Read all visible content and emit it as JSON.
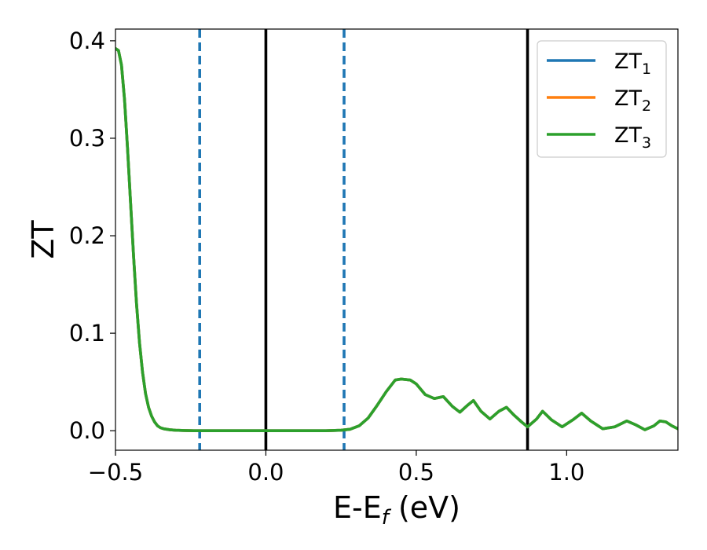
{
  "chart_data": {
    "type": "line",
    "xlabel": "E-E",
    "xlabel_sub": "f",
    "xlabel_unit": " (eV)",
    "ylabel": "ZT",
    "xlim": [
      -0.5,
      1.37
    ],
    "ylim": [
      -0.02,
      0.412
    ],
    "xticks": [
      -0.5,
      0.0,
      0.5,
      1.0
    ],
    "xtick_labels": [
      "−0.5",
      "0.0",
      "0.5",
      "1.0"
    ],
    "yticks": [
      0.0,
      0.1,
      0.2,
      0.3,
      0.4
    ],
    "ytick_labels": [
      "0.0",
      "0.1",
      "0.2",
      "0.3",
      "0.4"
    ],
    "grid": false,
    "legend_position": "top-right",
    "legend_entries": [
      {
        "base": "ZT",
        "sub": "1"
      },
      {
        "base": "ZT",
        "sub": "2"
      },
      {
        "base": "ZT",
        "sub": "3"
      }
    ],
    "vlines": [
      {
        "x": -0.22,
        "style": "dashed",
        "color": "#1f77b4"
      },
      {
        "x": 0.0,
        "style": "solid",
        "color": "#000000"
      },
      {
        "x": 0.26,
        "style": "dashed",
        "color": "#1f77b4"
      },
      {
        "x": 0.87,
        "style": "solid",
        "color": "#000000"
      }
    ],
    "series": [
      {
        "name": "ZT1",
        "color": "#1f77b4",
        "x": [
          -0.5,
          -0.49,
          -0.48,
          -0.47,
          -0.46,
          -0.45,
          -0.44,
          -0.43,
          -0.42,
          -0.41,
          -0.4,
          -0.39,
          -0.38,
          -0.37,
          -0.36,
          -0.35,
          -0.34,
          -0.32,
          -0.3,
          -0.27,
          -0.24,
          -0.2,
          -0.1,
          0.0,
          0.1,
          0.2,
          0.25,
          0.28,
          0.31,
          0.34,
          0.37,
          0.4,
          0.43,
          0.45,
          0.48,
          0.5,
          0.53,
          0.56,
          0.59,
          0.62,
          0.645,
          0.67,
          0.69,
          0.715,
          0.745,
          0.775,
          0.8,
          0.825,
          0.85,
          0.87,
          0.9,
          0.92,
          0.95,
          0.985,
          1.02,
          1.05,
          1.08,
          1.12,
          1.16,
          1.2,
          1.23,
          1.26,
          1.29,
          1.31,
          1.33,
          1.35,
          1.37
        ],
        "y": [
          0.392,
          0.39,
          0.375,
          0.34,
          0.29,
          0.235,
          0.18,
          0.13,
          0.09,
          0.06,
          0.038,
          0.024,
          0.015,
          0.009,
          0.005,
          0.003,
          0.002,
          0.001,
          0.0005,
          0.0002,
          0.0,
          0.0,
          0.0,
          0.0,
          0.0,
          0.0,
          0.0005,
          0.0015,
          0.005,
          0.013,
          0.026,
          0.04,
          0.052,
          0.053,
          0.052,
          0.048,
          0.037,
          0.033,
          0.035,
          0.025,
          0.019,
          0.026,
          0.031,
          0.02,
          0.012,
          0.02,
          0.024,
          0.016,
          0.009,
          0.004,
          0.012,
          0.02,
          0.011,
          0.004,
          0.011,
          0.018,
          0.01,
          0.002,
          0.004,
          0.01,
          0.006,
          0.001,
          0.005,
          0.01,
          0.009,
          0.005,
          0.002
        ]
      },
      {
        "name": "ZT2",
        "color": "#ff7f0e",
        "x": [
          -0.5,
          -0.49,
          -0.48,
          -0.47,
          -0.46,
          -0.45,
          -0.44,
          -0.43,
          -0.42,
          -0.41,
          -0.4,
          -0.39,
          -0.38,
          -0.37,
          -0.36,
          -0.35,
          -0.34,
          -0.32,
          -0.3,
          -0.27,
          -0.24,
          -0.2,
          -0.1,
          0.0,
          0.1,
          0.2,
          0.25,
          0.28,
          0.31,
          0.34,
          0.37,
          0.4,
          0.43,
          0.45,
          0.48,
          0.5,
          0.53,
          0.56,
          0.59,
          0.62,
          0.645,
          0.67,
          0.69,
          0.715,
          0.745,
          0.775,
          0.8,
          0.825,
          0.85,
          0.87,
          0.9,
          0.92,
          0.95,
          0.985,
          1.02,
          1.05,
          1.08,
          1.12,
          1.16,
          1.2,
          1.23,
          1.26,
          1.29,
          1.31,
          1.33,
          1.35,
          1.37
        ],
        "y": [
          0.392,
          0.39,
          0.375,
          0.34,
          0.29,
          0.235,
          0.18,
          0.13,
          0.09,
          0.06,
          0.038,
          0.024,
          0.015,
          0.009,
          0.005,
          0.003,
          0.002,
          0.001,
          0.0005,
          0.0002,
          0.0,
          0.0,
          0.0,
          0.0,
          0.0,
          0.0,
          0.0005,
          0.0015,
          0.005,
          0.013,
          0.026,
          0.04,
          0.052,
          0.053,
          0.052,
          0.048,
          0.037,
          0.033,
          0.035,
          0.025,
          0.019,
          0.026,
          0.031,
          0.02,
          0.012,
          0.02,
          0.024,
          0.016,
          0.009,
          0.004,
          0.012,
          0.02,
          0.011,
          0.004,
          0.011,
          0.018,
          0.01,
          0.002,
          0.004,
          0.01,
          0.006,
          0.001,
          0.005,
          0.01,
          0.009,
          0.005,
          0.002
        ]
      },
      {
        "name": "ZT3",
        "color": "#2ca02c",
        "x": [
          -0.5,
          -0.49,
          -0.48,
          -0.47,
          -0.46,
          -0.45,
          -0.44,
          -0.43,
          -0.42,
          -0.41,
          -0.4,
          -0.39,
          -0.38,
          -0.37,
          -0.36,
          -0.35,
          -0.34,
          -0.32,
          -0.3,
          -0.27,
          -0.24,
          -0.2,
          -0.1,
          0.0,
          0.1,
          0.2,
          0.25,
          0.28,
          0.31,
          0.34,
          0.37,
          0.4,
          0.43,
          0.45,
          0.48,
          0.5,
          0.53,
          0.56,
          0.59,
          0.62,
          0.645,
          0.67,
          0.69,
          0.715,
          0.745,
          0.775,
          0.8,
          0.825,
          0.85,
          0.87,
          0.9,
          0.92,
          0.95,
          0.985,
          1.02,
          1.05,
          1.08,
          1.12,
          1.16,
          1.2,
          1.23,
          1.26,
          1.29,
          1.31,
          1.33,
          1.35,
          1.37
        ],
        "y": [
          0.392,
          0.39,
          0.375,
          0.34,
          0.29,
          0.235,
          0.18,
          0.13,
          0.09,
          0.06,
          0.038,
          0.024,
          0.015,
          0.009,
          0.005,
          0.003,
          0.002,
          0.001,
          0.0005,
          0.0002,
          0.0,
          0.0,
          0.0,
          0.0,
          0.0,
          0.0,
          0.0005,
          0.0015,
          0.005,
          0.013,
          0.026,
          0.04,
          0.052,
          0.053,
          0.052,
          0.048,
          0.037,
          0.033,
          0.035,
          0.025,
          0.019,
          0.026,
          0.031,
          0.02,
          0.012,
          0.02,
          0.024,
          0.016,
          0.009,
          0.004,
          0.012,
          0.02,
          0.011,
          0.004,
          0.011,
          0.018,
          0.01,
          0.002,
          0.004,
          0.01,
          0.006,
          0.001,
          0.005,
          0.01,
          0.009,
          0.005,
          0.002
        ]
      }
    ]
  }
}
